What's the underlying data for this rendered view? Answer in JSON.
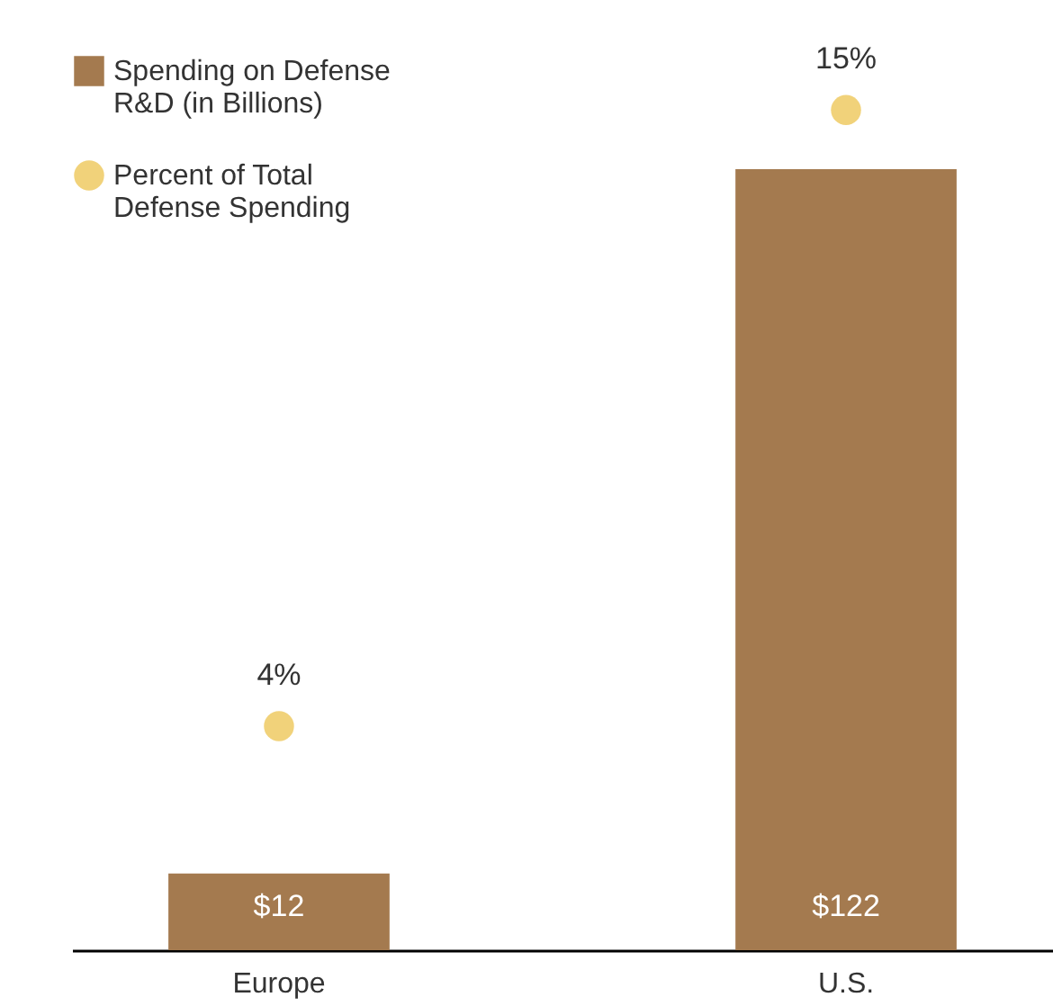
{
  "chart_data": {
    "type": "bar",
    "categories": [
      "Europe",
      "U.S."
    ],
    "ylim": [
      0,
      140
    ],
    "y2lim": [
      0,
      16
    ],
    "legend": "top left",
    "marker": "circle",
    "series": [
      {
        "name": "Spending on Defense R&D (in Billions)",
        "color": "#a47a4f",
        "values": [
          12,
          122
        ],
        "value_labels": [
          "$12",
          "$122"
        ]
      },
      {
        "name": "Percent of Total Defense Spending",
        "type": "scatter",
        "axis": "y2",
        "color": "#f1d27a",
        "values": [
          4,
          15
        ],
        "value_labels": [
          "4%",
          "15%"
        ]
      }
    ]
  }
}
